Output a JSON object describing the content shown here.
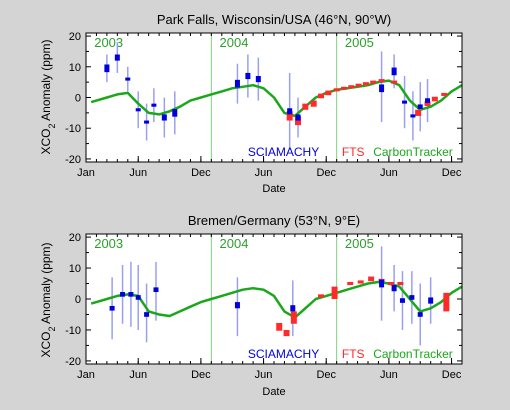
{
  "colors": {
    "sciamachy": "#0000dd",
    "sciamachy_err": "#9aa0f0",
    "fts": "#ff2a2a",
    "carbontracker": "#1aa81a",
    "year_line": "#7fd07f",
    "year_text": "#2ca02c",
    "plot_bg": "#ffffff",
    "page_bg": "#d4d4d4"
  },
  "chart_data": [
    {
      "type": "scatter",
      "title": "Park Falls, Wisconsin/USA (46°N, 90°W)",
      "ylabel_main": "XCO",
      "ylabel_sub": "2",
      "ylabel_rest": " Anomaly (ppm)",
      "xlabel": "Date",
      "xlim": [
        0,
        36
      ],
      "ylim": [
        -21,
        21
      ],
      "yticks": [
        -20,
        -10,
        0,
        10,
        20
      ],
      "xticks": [
        {
          "x": 0,
          "label": "Jan"
        },
        {
          "x": 5,
          "label": "Jun"
        },
        {
          "x": 11,
          "label": "Dec"
        },
        {
          "x": 17,
          "label": "Jun"
        },
        {
          "x": 23,
          "label": "Dec"
        },
        {
          "x": 29,
          "label": "Jun"
        },
        {
          "x": 35,
          "label": "Dec"
        }
      ],
      "year_lines": [
        12,
        24
      ],
      "year_labels": [
        {
          "x": 0.5,
          "label": "2003"
        },
        {
          "x": 12.5,
          "label": "2004"
        },
        {
          "x": 24.5,
          "label": "2005"
        }
      ],
      "legend": [
        "SCIAMACHY",
        "FTS",
        "CarbonTracker"
      ],
      "carbontracker": {
        "x": [
          0.5,
          1,
          2,
          3,
          4,
          5,
          6,
          7,
          8,
          9,
          10,
          11,
          12,
          13,
          14,
          15,
          16,
          17,
          18,
          19,
          20,
          21,
          22,
          23,
          24,
          25,
          26,
          27,
          28,
          29,
          30,
          31,
          32,
          33,
          34,
          35,
          36
        ],
        "y": [
          -1.5,
          -1,
          0,
          1,
          1.5,
          -2,
          -5,
          -5.5,
          -4.5,
          -3,
          -1,
          0,
          1,
          2,
          3,
          3.5,
          4,
          3,
          0,
          -5,
          -6,
          -3,
          0,
          1.5,
          2.5,
          3,
          3.5,
          4,
          5,
          5.5,
          4,
          -1,
          -4,
          -3,
          -1,
          2,
          4
        ]
      },
      "sciamachy": [
        {
          "x": 2,
          "y": 9.5,
          "lo": 5,
          "hi": 14,
          "h": 2.5
        },
        {
          "x": 3,
          "y": 13,
          "lo": 8,
          "hi": 18,
          "h": 2
        },
        {
          "x": 4,
          "y": 6,
          "lo": 2,
          "hi": 10,
          "h": 1
        },
        {
          "x": 5,
          "y": -4,
          "lo": -10,
          "hi": 2,
          "h": 1
        },
        {
          "x": 5.8,
          "y": -8,
          "lo": -14,
          "hi": -2,
          "h": 1
        },
        {
          "x": 6.5,
          "y": -2.5,
          "lo": -8,
          "hi": 3,
          "h": 1
        },
        {
          "x": 7.5,
          "y": -6.5,
          "lo": -13,
          "hi": 0,
          "h": 2
        },
        {
          "x": 8.5,
          "y": -5,
          "lo": -12,
          "hi": 2,
          "h": 2.5
        },
        {
          "x": 14.5,
          "y": 4.5,
          "lo": -2,
          "hi": 11,
          "h": 2.5
        },
        {
          "x": 15.5,
          "y": 7,
          "lo": 0,
          "hi": 14,
          "h": 2
        },
        {
          "x": 16.5,
          "y": 6,
          "lo": -1,
          "hi": 13,
          "h": 2
        },
        {
          "x": 19.5,
          "y": -4.5,
          "lo": -17,
          "hi": 8,
          "h": 2
        },
        {
          "x": 20.3,
          "y": -6.5,
          "lo": -13,
          "hi": 0,
          "h": 2
        },
        {
          "x": 28.3,
          "y": 3,
          "lo": -8,
          "hi": 15,
          "h": 2.5
        },
        {
          "x": 29.5,
          "y": 8.5,
          "lo": 3,
          "hi": 14,
          "h": 2.5
        },
        {
          "x": 30.5,
          "y": -1.5,
          "lo": -10,
          "hi": 7,
          "h": 1
        },
        {
          "x": 31.3,
          "y": -6,
          "lo": -14,
          "hi": 2,
          "h": 1
        },
        {
          "x": 32,
          "y": -3,
          "lo": -11,
          "hi": 5,
          "h": 1.5
        },
        {
          "x": 32.7,
          "y": -1,
          "lo": -8,
          "hi": 6,
          "h": 1.5
        }
      ],
      "fts": [
        {
          "x": 19.5,
          "y": -6,
          "h": 3
        },
        {
          "x": 20.3,
          "y": -7.5,
          "h": 3
        },
        {
          "x": 21,
          "y": -3,
          "h": 2
        },
        {
          "x": 21.8,
          "y": -2,
          "h": 2
        },
        {
          "x": 22.5,
          "y": 0.5,
          "h": 1.5
        },
        {
          "x": 23.2,
          "y": 1.5,
          "h": 1.5
        },
        {
          "x": 24,
          "y": 2.5,
          "h": 1
        },
        {
          "x": 24.7,
          "y": 3,
          "h": 1
        },
        {
          "x": 25.4,
          "y": 3.5,
          "h": 1
        },
        {
          "x": 26.1,
          "y": 4,
          "h": 1
        },
        {
          "x": 26.8,
          "y": 4.5,
          "h": 1
        },
        {
          "x": 27.5,
          "y": 5,
          "h": 1
        },
        {
          "x": 28.3,
          "y": 5.5,
          "h": 1
        },
        {
          "x": 29.5,
          "y": 5,
          "h": 1
        },
        {
          "x": 31.8,
          "y": -5,
          "h": 2
        },
        {
          "x": 32.7,
          "y": -2,
          "h": 1.5
        },
        {
          "x": 33.4,
          "y": -0.5,
          "h": 1.5
        },
        {
          "x": 34.3,
          "y": 1,
          "h": 1
        }
      ]
    },
    {
      "type": "scatter",
      "title": "Bremen/Germany (53°N, 9°E)",
      "ylabel_main": "XCO",
      "ylabel_sub": "2",
      "ylabel_rest": " Anomaly (ppm)",
      "xlabel": "Date",
      "xlim": [
        0,
        36
      ],
      "ylim": [
        -21,
        21
      ],
      "yticks": [
        -20,
        -10,
        0,
        10,
        20
      ],
      "xticks": [
        {
          "x": 0,
          "label": "Jan"
        },
        {
          "x": 5,
          "label": "Jun"
        },
        {
          "x": 11,
          "label": "Dec"
        },
        {
          "x": 17,
          "label": "Jun"
        },
        {
          "x": 23,
          "label": "Dec"
        },
        {
          "x": 29,
          "label": "Jun"
        },
        {
          "x": 35,
          "label": "Dec"
        }
      ],
      "year_lines": [
        12,
        24
      ],
      "year_labels": [
        {
          "x": 0.5,
          "label": "2003"
        },
        {
          "x": 12.5,
          "label": "2004"
        },
        {
          "x": 24.5,
          "label": "2005"
        }
      ],
      "legend": [
        "SCIAMACHY",
        "FTS",
        "CarbonTracker"
      ],
      "carbontracker": {
        "x": [
          0.5,
          1,
          2,
          3,
          4,
          5,
          6,
          7,
          8,
          9,
          10,
          11,
          12,
          13,
          14,
          15,
          16,
          17,
          18,
          19,
          20,
          21,
          22,
          23,
          24,
          25,
          26,
          27,
          28,
          29,
          30,
          31,
          32,
          33,
          34,
          35,
          36
        ],
        "y": [
          -1.5,
          -1,
          0,
          1,
          1.5,
          1,
          -4,
          -5,
          -5.5,
          -4,
          -2.5,
          -1,
          0,
          1,
          2,
          3,
          3.5,
          3,
          1,
          -4,
          -6,
          -3,
          0,
          1,
          2,
          3,
          4,
          5,
          5.5,
          5,
          4,
          0,
          -4,
          -3,
          -1,
          2,
          4
        ]
      },
      "sciamachy": [
        {
          "x": 2.5,
          "y": -3,
          "lo": -13,
          "hi": 7,
          "h": 1.5
        },
        {
          "x": 3.5,
          "y": 1.5,
          "lo": -8,
          "hi": 11,
          "h": 1.5
        },
        {
          "x": 4.3,
          "y": 1.5,
          "lo": -9,
          "hi": 12,
          "h": 1.5
        },
        {
          "x": 5,
          "y": 0.5,
          "lo": -10,
          "hi": 11,
          "h": 1.5
        },
        {
          "x": 5.8,
          "y": -5,
          "lo": -14,
          "hi": 5,
          "h": 1.5
        },
        {
          "x": 6.7,
          "y": 3,
          "lo": -7,
          "hi": 12,
          "h": 1.5
        },
        {
          "x": 14.5,
          "y": -2,
          "lo": -12,
          "hi": 7,
          "h": 2
        },
        {
          "x": 19.8,
          "y": -3,
          "lo": -12,
          "hi": 6,
          "h": 2
        },
        {
          "x": 28.3,
          "y": 5,
          "lo": -7,
          "hi": 17,
          "h": 2.5
        },
        {
          "x": 29.5,
          "y": 3.5,
          "lo": -4,
          "hi": 11,
          "h": 2
        },
        {
          "x": 30.3,
          "y": -0.5,
          "lo": -10,
          "hi": 9,
          "h": 1.5
        },
        {
          "x": 31.2,
          "y": 0.5,
          "lo": -8,
          "hi": 9,
          "h": 1.5
        },
        {
          "x": 32,
          "y": -5,
          "lo": -15,
          "hi": 5,
          "h": 1.5
        },
        {
          "x": 33,
          "y": -0.5,
          "lo": -8,
          "hi": 7,
          "h": 2
        }
      ],
      "fts": [
        {
          "x": 18.5,
          "y": -9,
          "h": 2.5
        },
        {
          "x": 19.2,
          "y": -11,
          "h": 2
        },
        {
          "x": 19.9,
          "y": -6,
          "h": 4
        },
        {
          "x": 22.5,
          "y": 1,
          "h": 1
        },
        {
          "x": 23.8,
          "y": 2,
          "h": 4
        },
        {
          "x": 25.3,
          "y": 5,
          "h": 1
        },
        {
          "x": 26.3,
          "y": 5.5,
          "h": 1
        },
        {
          "x": 27.3,
          "y": 6.5,
          "h": 1.5
        },
        {
          "x": 28.3,
          "y": 6,
          "h": 1
        },
        {
          "x": 29.2,
          "y": 5,
          "h": 1
        },
        {
          "x": 30.1,
          "y": 5,
          "h": 1
        },
        {
          "x": 34.5,
          "y": -1,
          "h": 6
        }
      ]
    }
  ]
}
